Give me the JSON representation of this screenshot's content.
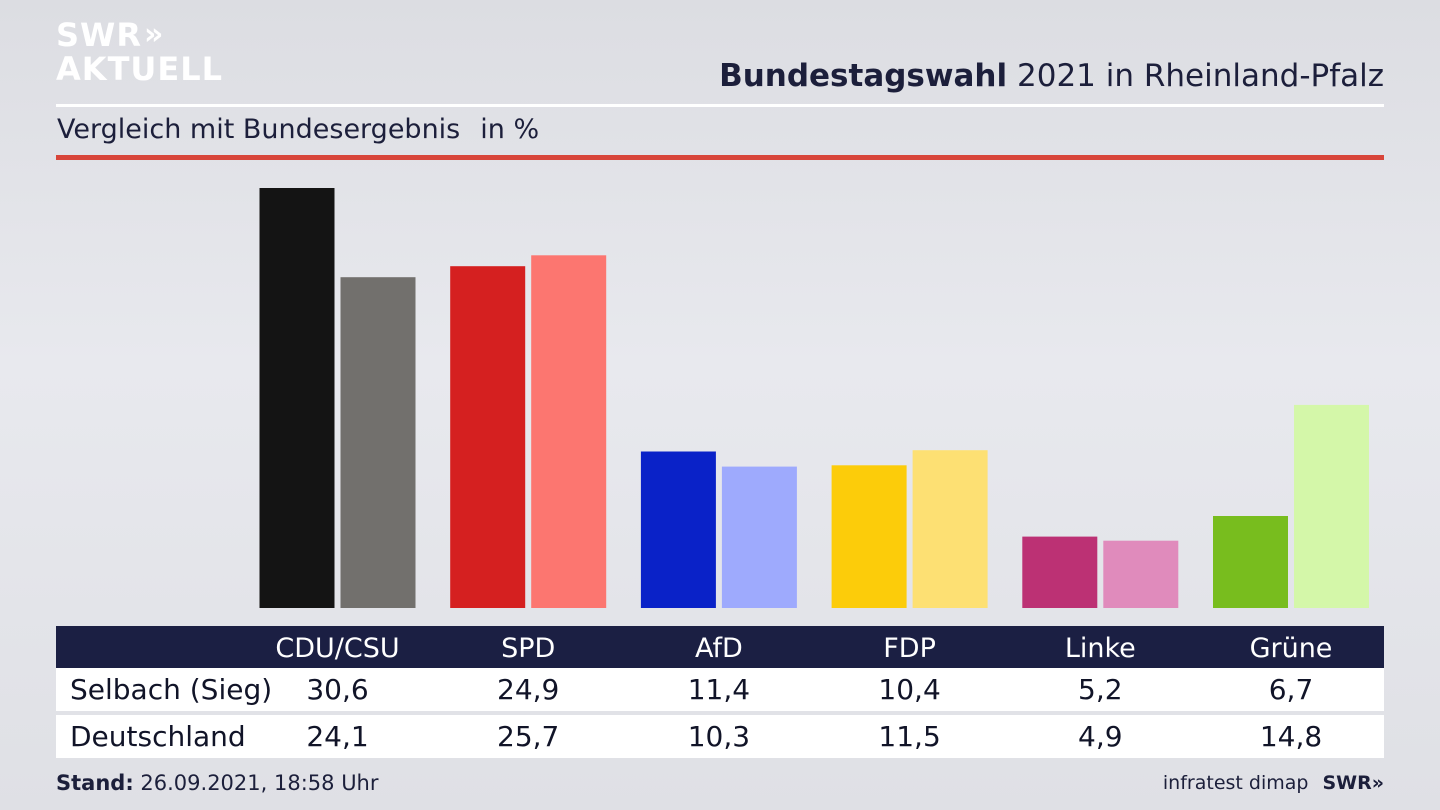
{
  "logo": {
    "line1": "SWR",
    "line1_chevrons": "»",
    "line2": "AKTUELL"
  },
  "header": {
    "title_bold": "Bundestagswahl",
    "title_rest": "2021 in Rheinland-Pfalz",
    "subtitle": "Vergleich mit Bundesergebnis",
    "unit": "in %"
  },
  "chart_data": {
    "type": "bar",
    "title": "Bundestagswahl 2021 in Rheinland-Pfalz",
    "subtitle": "Vergleich mit Bundesergebnis",
    "unit": "in %",
    "categories": [
      "CDU/CSU",
      "SPD",
      "AfD",
      "FDP",
      "Linke",
      "Grüne"
    ],
    "series": [
      {
        "name": "Selbach (Sieg)",
        "values": [
          30.6,
          24.9,
          11.4,
          10.4,
          5.2,
          6.7
        ],
        "value_labels": [
          "30,6",
          "24,9",
          "11,4",
          "10,4",
          "5,2",
          "6,7"
        ],
        "colors": [
          "#141414",
          "#d52020",
          "#0a22c8",
          "#fccc0a",
          "#bc3174",
          "#78bd1e"
        ]
      },
      {
        "name": "Deutschland",
        "values": [
          24.1,
          25.7,
          10.3,
          11.5,
          4.9,
          14.8
        ],
        "value_labels": [
          "24,1",
          "25,7",
          "10,3",
          "11,5",
          "4,9",
          "14,8"
        ],
        "colors": [
          "#72706d",
          "#fc7670",
          "#9eaafd",
          "#fde073",
          "#e08bbc",
          "#d4f7a9"
        ]
      }
    ],
    "ylim": [
      0,
      30.6
    ],
    "grid": false,
    "legend": "table-below"
  },
  "footer": {
    "stand_label": "Stand:",
    "stand_value": "26.09.2021, 18:58 Uhr",
    "source": "infratest dimap",
    "brand": "SWR»"
  }
}
